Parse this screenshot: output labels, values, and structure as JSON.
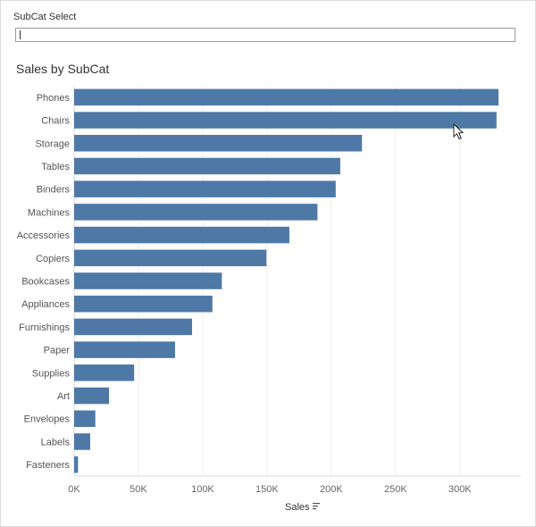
{
  "filter": {
    "label": "SubCat Select",
    "value": ""
  },
  "colors": {
    "bar": "#4e79a7",
    "gridline": "#ececec",
    "axis": "#d9d9d9"
  },
  "icons": {
    "sort": "sort-descending-icon",
    "cursor": "mouse-pointer-icon"
  },
  "chart_data": {
    "type": "bar",
    "orientation": "horizontal",
    "title": "Sales by SubCat",
    "xlabel": "Sales",
    "ylabel": "",
    "categories": [
      "Phones",
      "Chairs",
      "Storage",
      "Tables",
      "Binders",
      "Machines",
      "Accessories",
      "Copiers",
      "Bookcases",
      "Appliances",
      "Furnishings",
      "Paper",
      "Supplies",
      "Art",
      "Envelopes",
      "Labels",
      "Fasteners"
    ],
    "values": [
      330007,
      328449,
      223844,
      206966,
      203413,
      189239,
      167380,
      149528,
      114880,
      107532,
      91705,
      78479,
      46674,
      27119,
      16476,
      12486,
      3024
    ],
    "xlim": [
      0,
      330000
    ],
    "xticks": [
      0,
      50000,
      100000,
      150000,
      200000,
      250000,
      300000
    ],
    "xtick_labels": [
      "0K",
      "50K",
      "100K",
      "150K",
      "200K",
      "250K",
      "300K"
    ],
    "grid": true
  }
}
